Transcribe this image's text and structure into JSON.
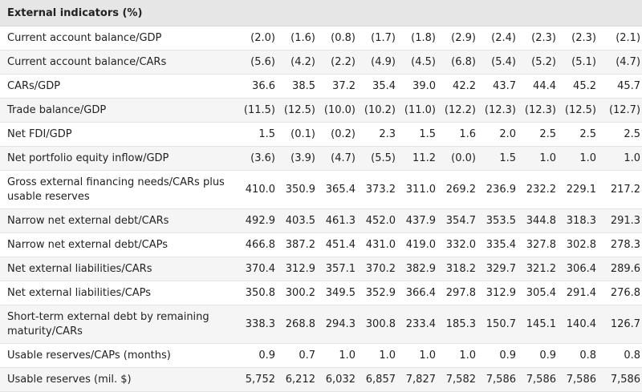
{
  "table": {
    "title": "External indicators (%)",
    "rows": [
      {
        "label": "Current account balance/GDP",
        "values": [
          "(2.0)",
          "(1.6)",
          "(0.8)",
          "(1.7)",
          "(1.8)",
          "(2.9)",
          "(2.4)",
          "(2.3)",
          "(2.3)",
          "(2.1)"
        ]
      },
      {
        "label": "Current account balance/CARs",
        "values": [
          "(5.6)",
          "(4.2)",
          "(2.2)",
          "(4.9)",
          "(4.5)",
          "(6.8)",
          "(5.4)",
          "(5.2)",
          "(5.1)",
          "(4.7)"
        ]
      },
      {
        "label": "CARs/GDP",
        "values": [
          "36.6",
          "38.5",
          "37.2",
          "35.4",
          "39.0",
          "42.2",
          "43.7",
          "44.4",
          "45.2",
          "45.7"
        ]
      },
      {
        "label": "Trade balance/GDP",
        "values": [
          "(11.5)",
          "(12.5)",
          "(10.0)",
          "(10.2)",
          "(11.0)",
          "(12.2)",
          "(12.3)",
          "(12.3)",
          "(12.5)",
          "(12.7)"
        ]
      },
      {
        "label": "Net FDI/GDP",
        "values": [
          "1.5",
          "(0.1)",
          "(0.2)",
          "2.3",
          "1.5",
          "1.6",
          "2.0",
          "2.5",
          "2.5",
          "2.5"
        ]
      },
      {
        "label": "Net portfolio equity inflow/GDP",
        "values": [
          "(3.6)",
          "(3.9)",
          "(4.7)",
          "(5.5)",
          "11.2",
          "(0.0)",
          "1.5",
          "1.0",
          "1.0",
          "1.0"
        ]
      },
      {
        "label": "Gross external financing needs/CARs plus usable reserves",
        "values": [
          "410.0",
          "350.9",
          "365.4",
          "373.2",
          "311.0",
          "269.2",
          "236.9",
          "232.2",
          "229.1",
          "217.2"
        ]
      },
      {
        "label": "Narrow net external debt/CARs",
        "values": [
          "492.9",
          "403.5",
          "461.3",
          "452.0",
          "437.9",
          "354.7",
          "353.5",
          "344.8",
          "318.3",
          "291.3"
        ]
      },
      {
        "label": "Narrow net external debt/CAPs",
        "values": [
          "466.8",
          "387.2",
          "451.4",
          "431.0",
          "419.0",
          "332.0",
          "335.4",
          "327.8",
          "302.8",
          "278.3"
        ]
      },
      {
        "label": "Net external liabilities/CARs",
        "values": [
          "370.4",
          "312.9",
          "357.1",
          "370.2",
          "382.9",
          "318.2",
          "329.7",
          "321.2",
          "306.4",
          "289.6"
        ]
      },
      {
        "label": "Net external liabilities/CAPs",
        "values": [
          "350.8",
          "300.2",
          "349.5",
          "352.9",
          "366.4",
          "297.8",
          "312.9",
          "305.4",
          "291.4",
          "276.8"
        ]
      },
      {
        "label": "Short-term external debt by remaining maturity/CARs",
        "values": [
          "338.3",
          "268.8",
          "294.3",
          "300.8",
          "233.4",
          "185.3",
          "150.7",
          "145.1",
          "140.4",
          "126.7"
        ]
      },
      {
        "label": "Usable reserves/CAPs (months)",
        "values": [
          "0.9",
          "0.7",
          "1.0",
          "1.0",
          "1.0",
          "1.0",
          "0.9",
          "0.9",
          "0.8",
          "0.8"
        ]
      },
      {
        "label": "Usable reserves (mil. $)",
        "values": [
          "5,752",
          "6,212",
          "6,032",
          "6,857",
          "7,827",
          "7,582",
          "7,586",
          "7,586",
          "7,586",
          "7,586"
        ]
      }
    ]
  }
}
